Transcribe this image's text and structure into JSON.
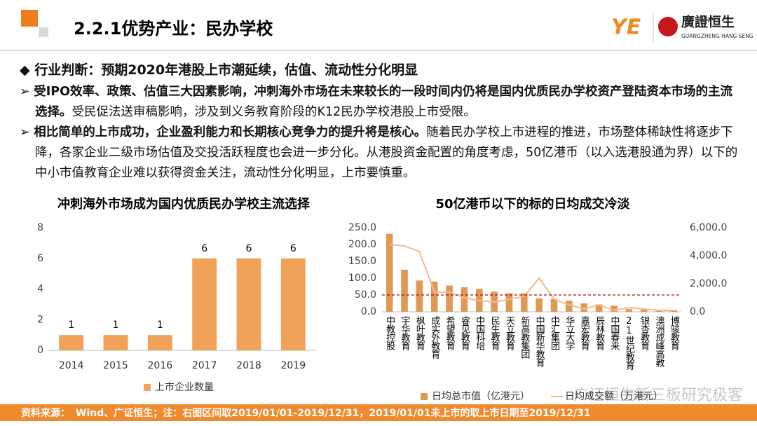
{
  "header": {
    "title": "2.2.1优势产业：民办学校"
  },
  "logo": {
    "mark": "YE",
    "name": "廣證恒生",
    "subtitle": "GUANGZHENG HANG SENG"
  },
  "bullets": {
    "heading": "行业判断：预期2020年港股上市潮延续，估值、流动性分化明显",
    "items": [
      {
        "bold": "受IPO效率、政策、估值三大因素影响，冲刺海外市场在未来较长的一段时间内仍将是国内优质民办学校资产登陆资本市场的主流选择。",
        "text": "受民促法送审稿影响，涉及到义务教育阶段的K12民办学校港股上市受限。"
      },
      {
        "bold": "相比简单的上市成功，企业盈利能力和长期核心竞争力的提升将是核心。",
        "text": "随着民办学校上市进程的推进，市场整体稀缺性将逐步下降，各家企业二级市场估值及交投活跃程度也会进一步分化。从港股资金配置的角度考虑，50亿港币（以入选港股通为界）以下的中小市值教育企业难以获得资金关注，流动性分化明显，上市要慎重。"
      }
    ]
  },
  "chart_data": [
    {
      "type": "bar",
      "title": "冲刺海外市场成为国内优质民办学校主流选择",
      "categories": [
        "2014",
        "2015",
        "2016",
        "2017",
        "2018",
        "2019"
      ],
      "series": [
        {
          "name": "上市企业数量",
          "color": "#F0A258",
          "values": [
            1,
            1,
            1,
            6,
            6,
            6
          ]
        }
      ],
      "ylim": [
        0,
        8
      ],
      "yticks": [
        0,
        2,
        4,
        6,
        8
      ],
      "data_labels": true
    },
    {
      "type": "bar",
      "title": "50亿港币以下的标的日均成交冷淡",
      "categories": [
        "中教控股",
        "宇华教育",
        "枫叶教育",
        "成实外教育",
        "希望教育",
        "睿见教育",
        "中国科培",
        "民生教育",
        "天立教育",
        "新高教集团",
        "中国新华教育",
        "中汇集团",
        "华立大学",
        "嘉宏教育",
        "辰林教育",
        "中国春来",
        "21世纪教育",
        "银杏教育",
        "澳洲成峰高教",
        "博骏教育"
      ],
      "series": [
        {
          "name": "日均总市值（亿港元）",
          "type": "bar",
          "color": "#DE9A55",
          "values": [
            232,
            125,
            93,
            90,
            78,
            73,
            68,
            60,
            55,
            55,
            40,
            38,
            33,
            25,
            22,
            18,
            8,
            7,
            5,
            5
          ]
        },
        {
          "name": "日均成交额（万港元）",
          "type": "line",
          "axis": "y2",
          "color": "#F4B890",
          "values": [
            4800,
            4700,
            4300,
            1400,
            1400,
            1000,
            800,
            700,
            900,
            1100,
            2400,
            900,
            500,
            200,
            500,
            100,
            300,
            200,
            100,
            100
          ]
        }
      ],
      "reference_line": {
        "value": 50,
        "color": "#C00000"
      },
      "ylim": [
        0,
        250
      ],
      "yticks": [
        {
          "value": 0,
          "label": "0.0"
        },
        {
          "value": 50,
          "label": "50.0"
        },
        {
          "value": 100,
          "label": "100.0"
        },
        {
          "value": 150,
          "label": "150.0"
        },
        {
          "value": 200,
          "label": "200.0"
        },
        {
          "value": 250,
          "label": "250.0"
        }
      ],
      "y2lim": [
        0,
        6000
      ],
      "y2ticks": [
        {
          "value": 0,
          "label": "0.0"
        },
        {
          "value": 2000,
          "label": "2,000.0"
        },
        {
          "value": 4000,
          "label": "4,000.0"
        },
        {
          "value": 6000,
          "label": "6,000.0"
        }
      ]
    }
  ],
  "watermark": "广证恒生新三板研究极客",
  "footer": {
    "label": "资料来源：",
    "text": "Wind、广证恒生；注：右图区间取2019/01/01-2019/12/31，2019/01/01未上市的取上市日期至2019/12/31"
  }
}
